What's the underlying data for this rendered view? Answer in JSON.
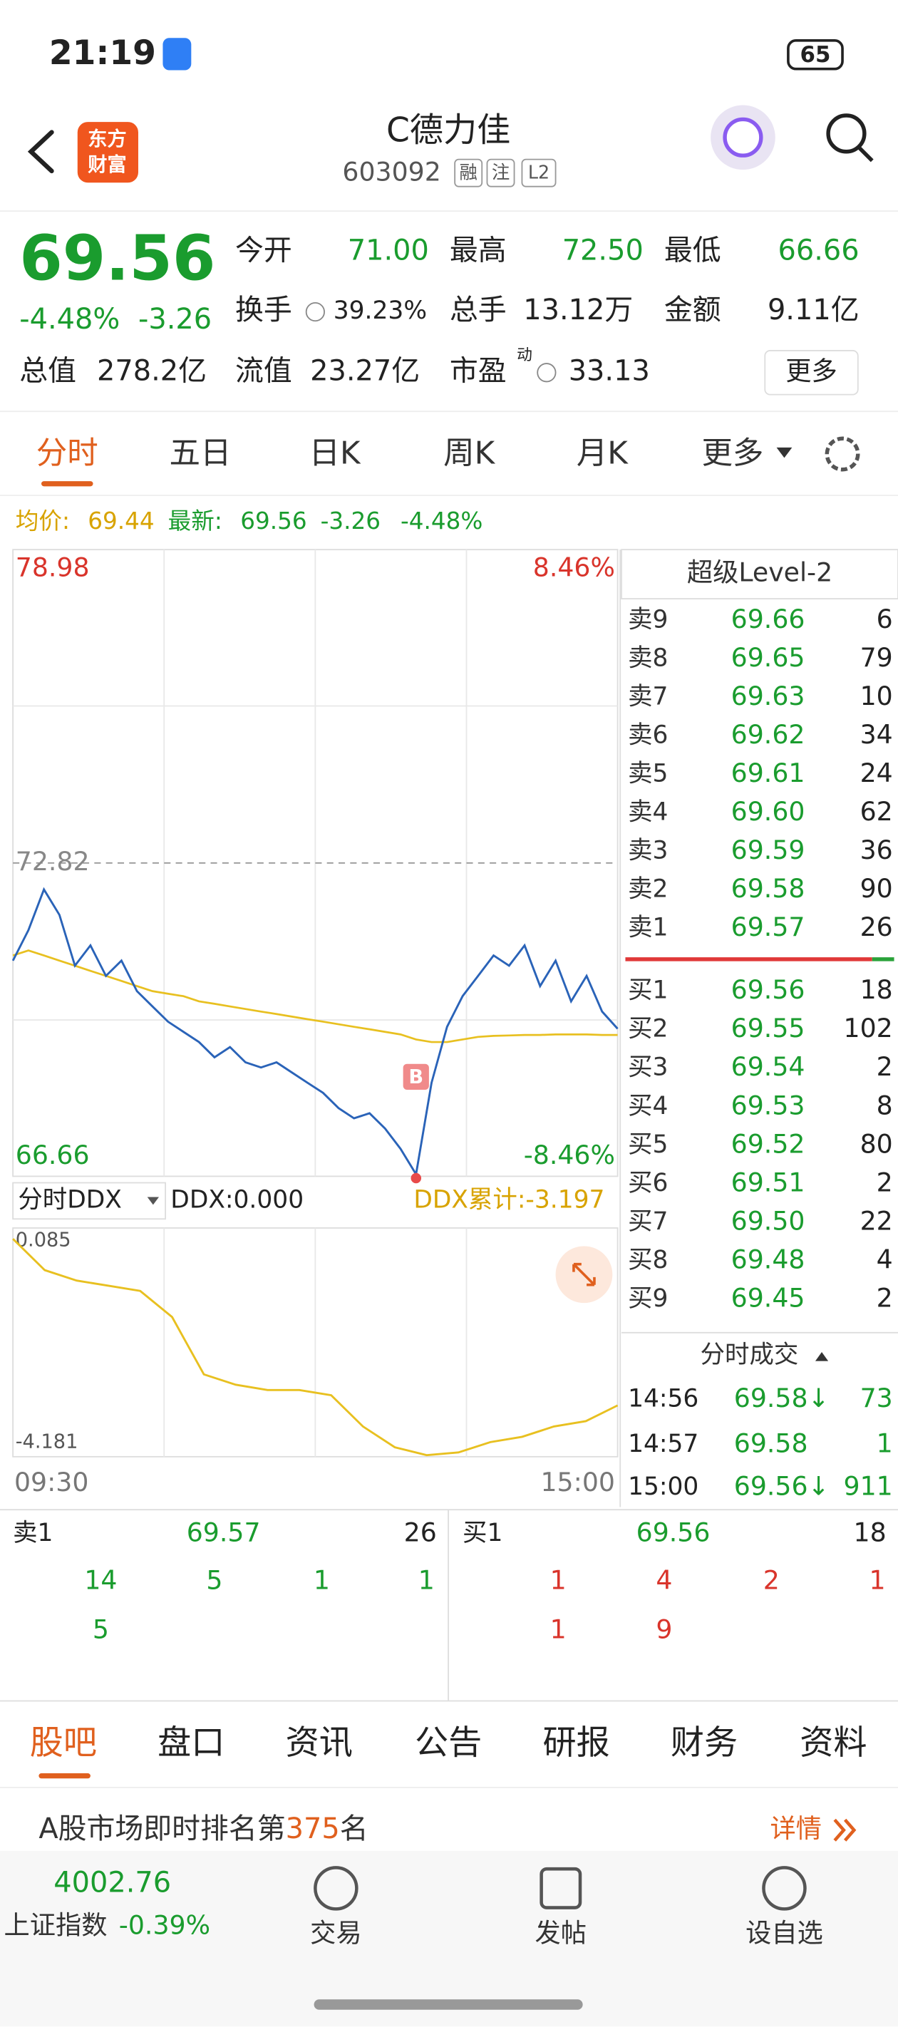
{
  "status": {
    "time": "21:19",
    "battery": "65"
  },
  "header": {
    "logo": [
      "东方",
      "财富"
    ],
    "title": "C德力佳",
    "code": "603092",
    "badges": [
      "融",
      "注",
      "L2"
    ]
  },
  "quote": {
    "price": "69.56",
    "change_pct": "-4.48%",
    "change": "-3.26",
    "fields": [
      {
        "label": "今开",
        "value": "71.00"
      },
      {
        "label": "最高",
        "value": "72.50"
      },
      {
        "label": "最低",
        "value": "66.66"
      },
      {
        "label": "换手",
        "value": "39.23%"
      },
      {
        "label": "总手",
        "value": "13.12万"
      },
      {
        "label": "金额",
        "value": "9.11亿"
      },
      {
        "label": "总值",
        "value": "278.2亿"
      },
      {
        "label": "流值",
        "value": "23.27亿"
      },
      {
        "label": "市盈",
        "sup": "动",
        "value": "33.13"
      }
    ],
    "more": "更多"
  },
  "tabs": [
    "分时",
    "五日",
    "日K",
    "周K",
    "月K",
    "更多"
  ],
  "legend": {
    "avg_label": "均价:",
    "avg": "69.44",
    "latest_label": "最新:",
    "latest": "69.56",
    "change": "-3.26",
    "change_pct": "-4.48%"
  },
  "intraday": {
    "ylim": [
      66.66,
      78.98
    ],
    "ref": 72.82,
    "pct_labels": [
      "8.46%",
      "-8.46%"
    ],
    "marker": "B",
    "prices": [
      70.9,
      71.5,
      72.3,
      71.8,
      70.8,
      71.2,
      70.6,
      70.9,
      70.3,
      70.0,
      69.7,
      69.5,
      69.3,
      69.0,
      69.2,
      68.9,
      68.8,
      68.9,
      68.7,
      68.5,
      68.3,
      68.0,
      67.8,
      67.9,
      67.6,
      67.2,
      66.7,
      68.5,
      69.6,
      70.2,
      70.6,
      71.0,
      70.8,
      71.2,
      70.4,
      70.9,
      70.1,
      70.6,
      69.9,
      69.56
    ],
    "avg": [
      71.0,
      71.1,
      71.0,
      70.9,
      70.8,
      70.7,
      70.6,
      70.5,
      70.4,
      70.3,
      70.25,
      70.2,
      70.1,
      70.05,
      70.0,
      69.95,
      69.9,
      69.85,
      69.8,
      69.75,
      69.7,
      69.65,
      69.6,
      69.55,
      69.5,
      69.45,
      69.35,
      69.3,
      69.3,
      69.35,
      69.4,
      69.42,
      69.43,
      69.44,
      69.44,
      69.45,
      69.45,
      69.45,
      69.44,
      69.44
    ],
    "times": [
      "09:30",
      "15:00"
    ]
  },
  "ddx": {
    "selector": "分时DDX",
    "value": "DDX:0.000",
    "cumulative": "DDX累计:-3.197",
    "ylim": [
      -4.181,
      0.085
    ],
    "values": [
      0.0,
      -0.6,
      -0.8,
      -0.9,
      -1.0,
      -1.5,
      -2.6,
      -2.8,
      -2.9,
      -2.9,
      -3.0,
      -3.6,
      -4.0,
      -4.15,
      -4.1,
      -3.9,
      -3.8,
      -3.6,
      -3.5,
      -3.197
    ]
  },
  "order_book": {
    "title": "超级Level-2",
    "sells": [
      [
        "卖9",
        "69.66",
        "6"
      ],
      [
        "卖8",
        "69.65",
        "79"
      ],
      [
        "卖7",
        "69.63",
        "10"
      ],
      [
        "卖6",
        "69.62",
        "34"
      ],
      [
        "卖5",
        "69.61",
        "24"
      ],
      [
        "卖4",
        "69.60",
        "62"
      ],
      [
        "卖3",
        "69.59",
        "36"
      ],
      [
        "卖2",
        "69.58",
        "90"
      ],
      [
        "卖1",
        "69.57",
        "26"
      ]
    ],
    "buys": [
      [
        "买1",
        "69.56",
        "18"
      ],
      [
        "买2",
        "69.55",
        "102"
      ],
      [
        "买3",
        "69.54",
        "2"
      ],
      [
        "买4",
        "69.53",
        "8"
      ],
      [
        "买5",
        "69.52",
        "80"
      ],
      [
        "买6",
        "69.51",
        "2"
      ],
      [
        "买7",
        "69.50",
        "22"
      ],
      [
        "买8",
        "69.48",
        "4"
      ],
      [
        "买9",
        "69.45",
        "2"
      ]
    ]
  },
  "trades": {
    "title": "分时成交",
    "rows": [
      [
        "14:56",
        "69.58↓",
        "73"
      ],
      [
        "14:57",
        "69.58",
        "1"
      ],
      [
        "15:00",
        "69.56↓",
        "911"
      ]
    ]
  },
  "queue": {
    "sell": {
      "label": "卖1",
      "price": "69.57",
      "volume": "26",
      "orders": [
        [
          "14",
          "5",
          "1",
          "1"
        ],
        [
          "5"
        ]
      ]
    },
    "buy": {
      "label": "买1",
      "price": "69.56",
      "volume": "18",
      "orders": [
        [
          "1",
          "4",
          "2",
          "1"
        ],
        [
          "1",
          "9"
        ]
      ]
    }
  },
  "bottom_tabs": [
    "股吧",
    "盘口",
    "资讯",
    "公告",
    "研报",
    "财务",
    "资料"
  ],
  "rank": {
    "prefix": "A股市场即时排名第",
    "rank": "375",
    "suffix": "名",
    "details": "详情"
  },
  "footer": {
    "index_value": "4002.76",
    "index_name": "上证指数",
    "index_change": "-0.39%",
    "buttons": [
      "交易",
      "发帖",
      "设自选"
    ]
  }
}
